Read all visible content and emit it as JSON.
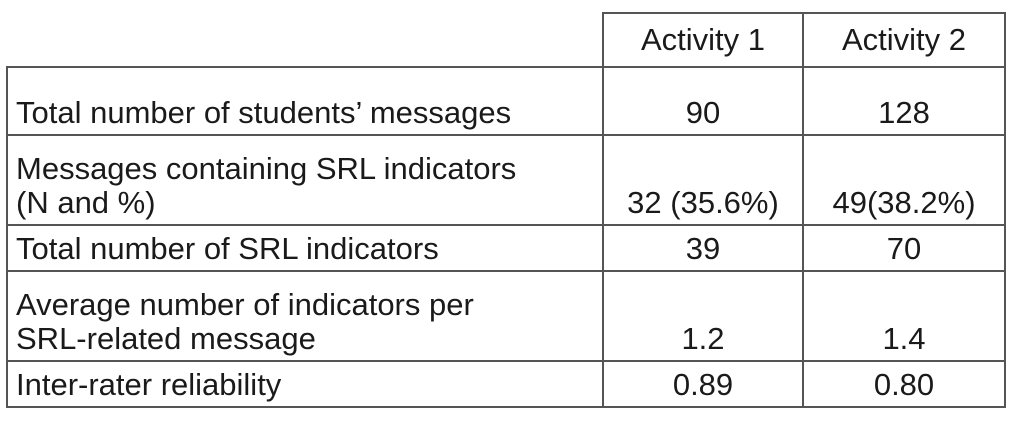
{
  "table": {
    "columns": [
      "Activity 1",
      "Activity 2"
    ],
    "rows": [
      {
        "label": "Total number of students’ messages",
        "values": [
          "90",
          "128"
        ]
      },
      {
        "label": "Messages containing SRL indicators\n(N and %)",
        "values": [
          "32 (35.6%)",
          "49(38.2%)"
        ]
      },
      {
        "label": "Total number of SRL indicators",
        "values": [
          "39",
          "70"
        ]
      },
      {
        "label": "Average number of indicators per\nSRL-related message",
        "values": [
          "1.2",
          "1.4"
        ]
      },
      {
        "label": "Inter-rater  reliability",
        "values": [
          "0.89",
          "0.80"
        ]
      }
    ]
  }
}
